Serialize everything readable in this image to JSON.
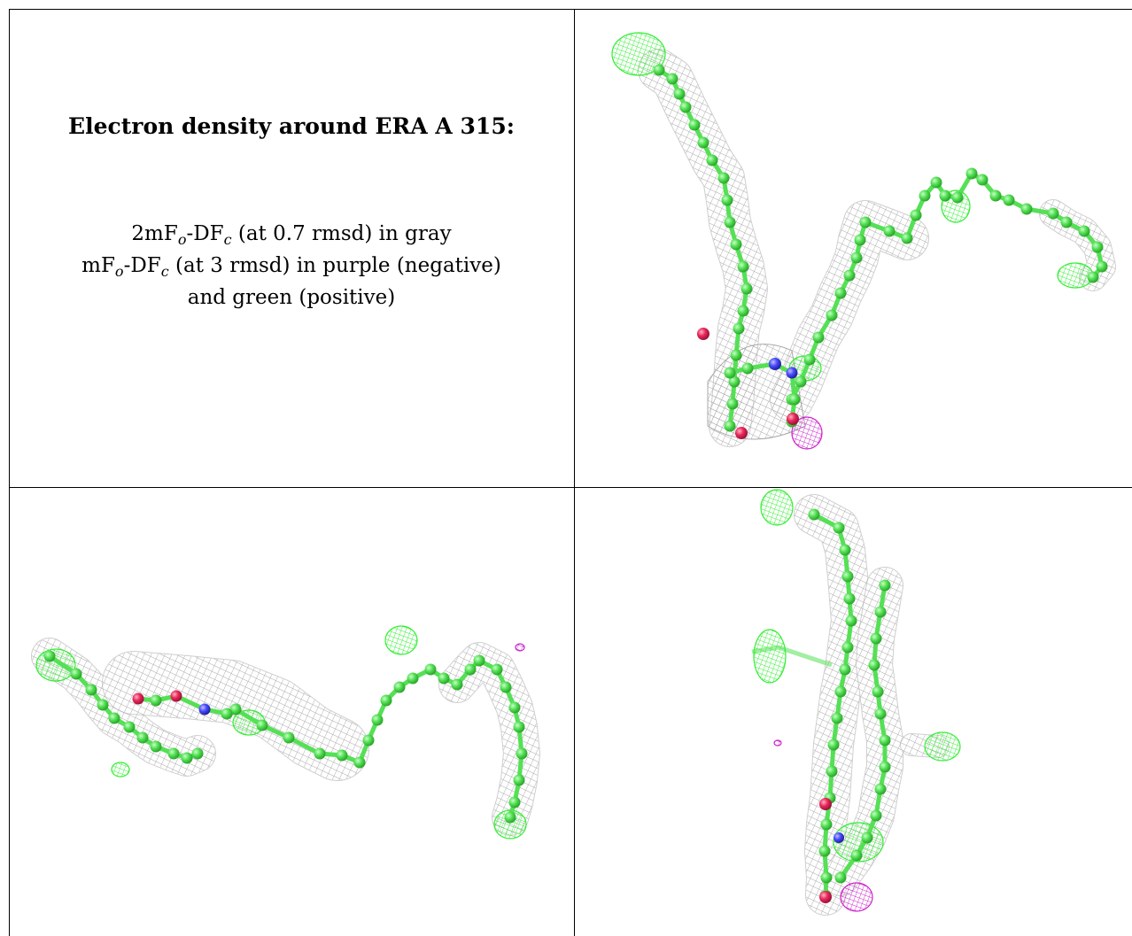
{
  "caption": {
    "title": "Electron density around ERA A 315:",
    "line1": {
      "prefix": "2mF",
      "sub1": "o",
      "mid": "-DF",
      "sub2": "c",
      "suffix": " (at 0.7 rmsd) in gray"
    },
    "line2": {
      "prefix": "mF",
      "sub1": "o",
      "mid": "-DF",
      "sub2": "c",
      "suffix": " (at 3 rmsd) in purple (negative)"
    },
    "line3": "and green (positive)"
  },
  "colors": {
    "mesh_2fofc": "#a8a8a8",
    "positive": "#33ee33",
    "negative": "#cc22cc",
    "carbon": "#55e055",
    "oxygen": "#e8285a",
    "nitrogen": "#4a4aff"
  },
  "panels": [
    {
      "name": "view-top-right"
    },
    {
      "name": "view-bottom-left"
    },
    {
      "name": "view-bottom-right"
    }
  ]
}
